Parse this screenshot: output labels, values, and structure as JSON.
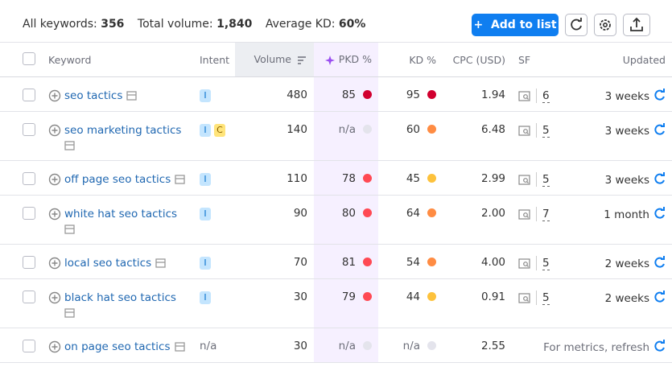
{
  "summary": {
    "keywords_label": "All keywords:",
    "keywords": "356",
    "volume_label": "Total volume:",
    "volume": "1,840",
    "kd_label": "Average KD:",
    "kd": "60%"
  },
  "add_button": "Add to list",
  "table": {
    "columns": [
      "Keyword",
      "Intent",
      "Volume",
      "PKD %",
      "KD %",
      "CPC (USD)",
      "SF",
      "Updated"
    ],
    "rows": [
      {
        "keyword": "seo tactics",
        "intent": [
          {
            "label": "I",
            "color": "#c4e5fe"
          }
        ],
        "volume": "480",
        "pkd": "85",
        "pkd_color": "#d1002f",
        "kd": "95",
        "kd_color": "#d1002f",
        "cpc": "1.94",
        "sf": "6",
        "updated": "3 weeks"
      },
      {
        "keyword": "seo marketing tactics",
        "intent": [
          {
            "label": "I",
            "color": "#c4e5fe"
          },
          {
            "label": "C",
            "color": "#ffe47a"
          }
        ],
        "volume": "140",
        "pkd": "n/a",
        "pkd_color": "#e4e4ec",
        "kd": "60",
        "kd_color": "#ff8c43",
        "cpc": "6.48",
        "sf": "5",
        "updated": "3 weeks"
      },
      {
        "keyword": "off page seo tactics",
        "intent": [
          {
            "label": "I",
            "color": "#c4e5fe"
          }
        ],
        "volume": "110",
        "pkd": "78",
        "pkd_color": "#ff4953",
        "kd": "45",
        "kd_color": "#fdc23c",
        "cpc": "2.99",
        "sf": "5",
        "updated": "3 weeks"
      },
      {
        "keyword": "white hat seo tactics",
        "intent": [
          {
            "label": "I",
            "color": "#c4e5fe"
          }
        ],
        "volume": "90",
        "pkd": "80",
        "pkd_color": "#ff4953",
        "kd": "64",
        "kd_color": "#ff8c43",
        "cpc": "2.00",
        "sf": "7",
        "updated": "1 month"
      },
      {
        "keyword": "local seo tactics",
        "intent": [
          {
            "label": "I",
            "color": "#c4e5fe"
          }
        ],
        "volume": "70",
        "pkd": "81",
        "pkd_color": "#ff4953",
        "kd": "54",
        "kd_color": "#ff8c43",
        "cpc": "4.00",
        "sf": "5",
        "updated": "2 weeks"
      },
      {
        "keyword": "black hat seo tactics",
        "intent": [
          {
            "label": "I",
            "color": "#c4e5fe"
          }
        ],
        "volume": "30",
        "pkd": "79",
        "pkd_color": "#ff4953",
        "kd": "44",
        "kd_color": "#fdc23c",
        "cpc": "0.91",
        "sf": "5",
        "updated": "2 weeks"
      },
      {
        "keyword": "on page seo tactics",
        "intent": "n/a",
        "volume": "30",
        "pkd": "n/a",
        "pkd_color": "#e4e4ec",
        "kd": "n/a",
        "kd_color": "#e4e4ec",
        "cpc": "2.55",
        "updated": "For metrics, refresh"
      }
    ]
  }
}
